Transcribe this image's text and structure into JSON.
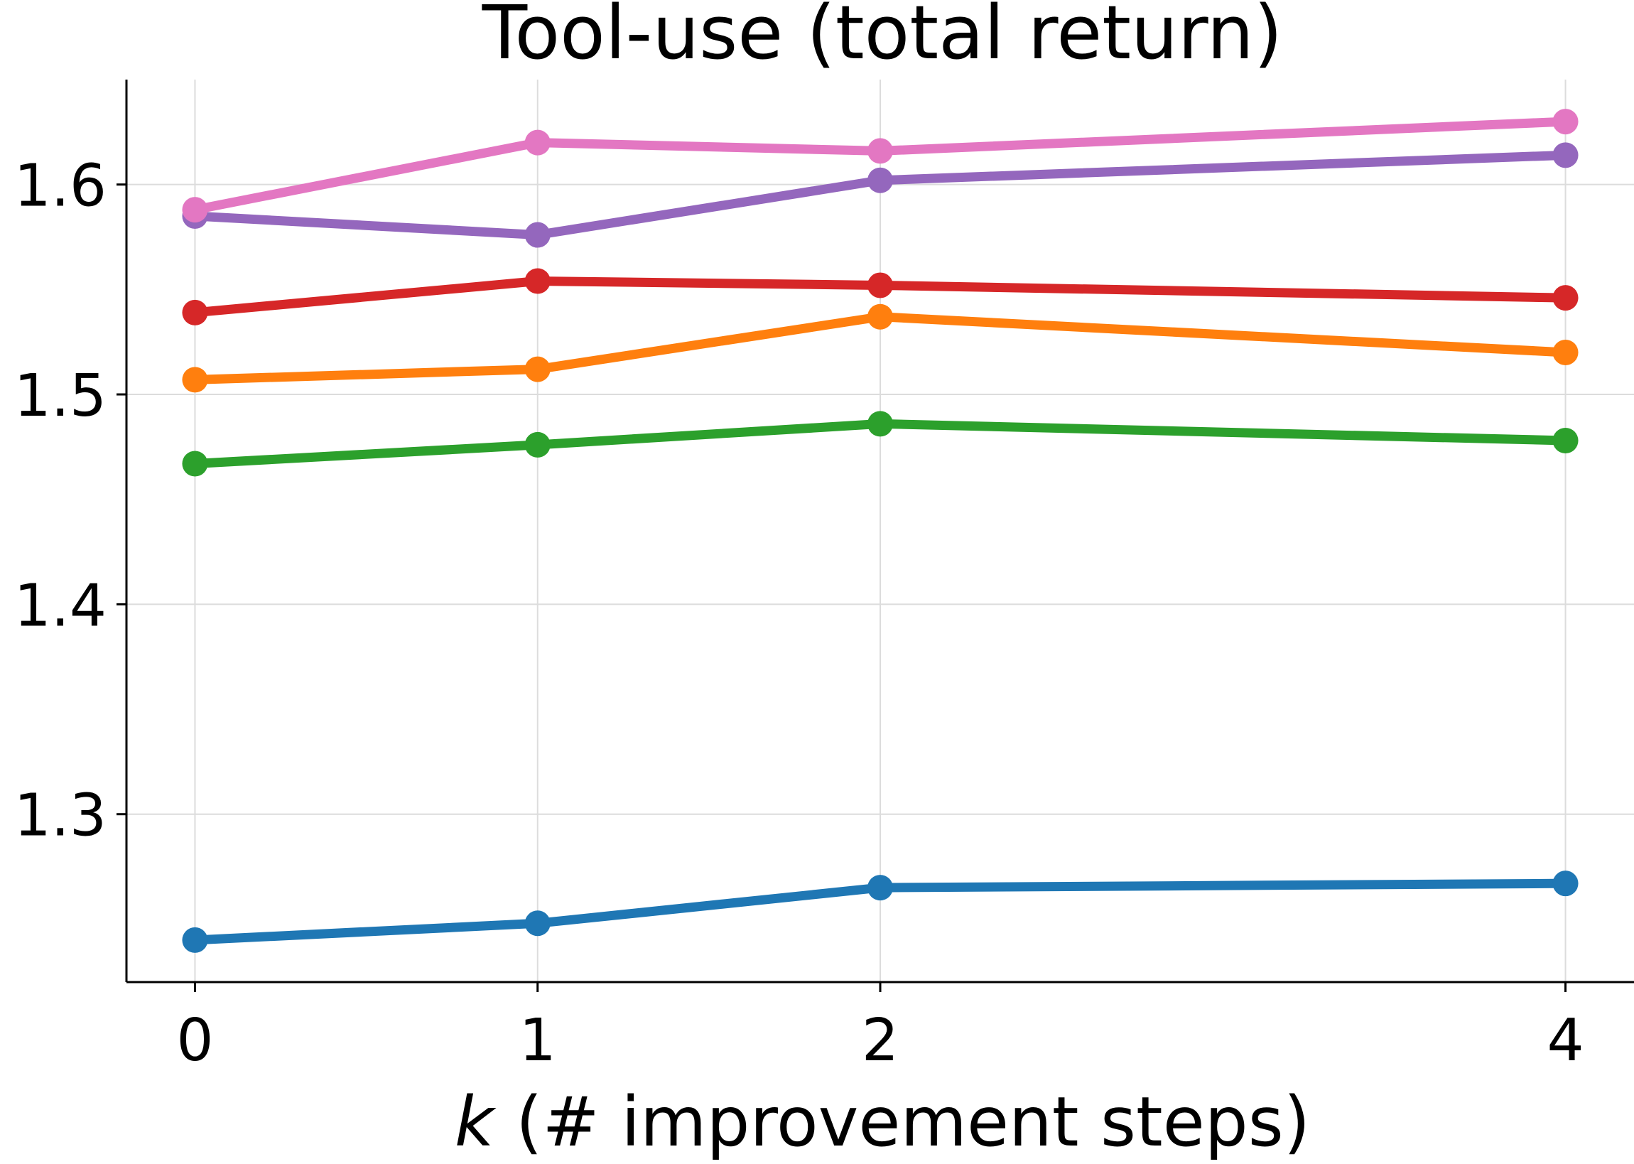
{
  "chart_data": {
    "type": "line",
    "title": "Tool-use (total return)",
    "xlabel_var": "k",
    "xlabel_rest": " (# improvement steps)",
    "ylabel": "",
    "x": [
      0,
      1,
      2,
      4
    ],
    "xticks": [
      "0",
      "1",
      "2",
      "4"
    ],
    "yticks": [
      1.3,
      1.4,
      1.5,
      1.6
    ],
    "ytick_labels": [
      "1.3",
      "1.4",
      "1.5",
      "1.6"
    ],
    "xlim": [
      -0.2,
      4.2
    ],
    "ylim": [
      1.22,
      1.65
    ],
    "grid": true,
    "series": [
      {
        "color": "#1f77b4",
        "values": [
          1.24,
          1.248,
          1.265,
          1.267
        ]
      },
      {
        "color": "#ff7f0e",
        "values": [
          1.507,
          1.512,
          1.537,
          1.52
        ]
      },
      {
        "color": "#2ca02c",
        "values": [
          1.467,
          1.476,
          1.486,
          1.478
        ]
      },
      {
        "color": "#d62728",
        "values": [
          1.539,
          1.554,
          1.552,
          1.546
        ]
      },
      {
        "color": "#9467bd",
        "values": [
          1.585,
          1.576,
          1.602,
          1.614
        ]
      },
      {
        "color": "#e377c2",
        "values": [
          1.588,
          1.62,
          1.616,
          1.63
        ]
      }
    ]
  }
}
